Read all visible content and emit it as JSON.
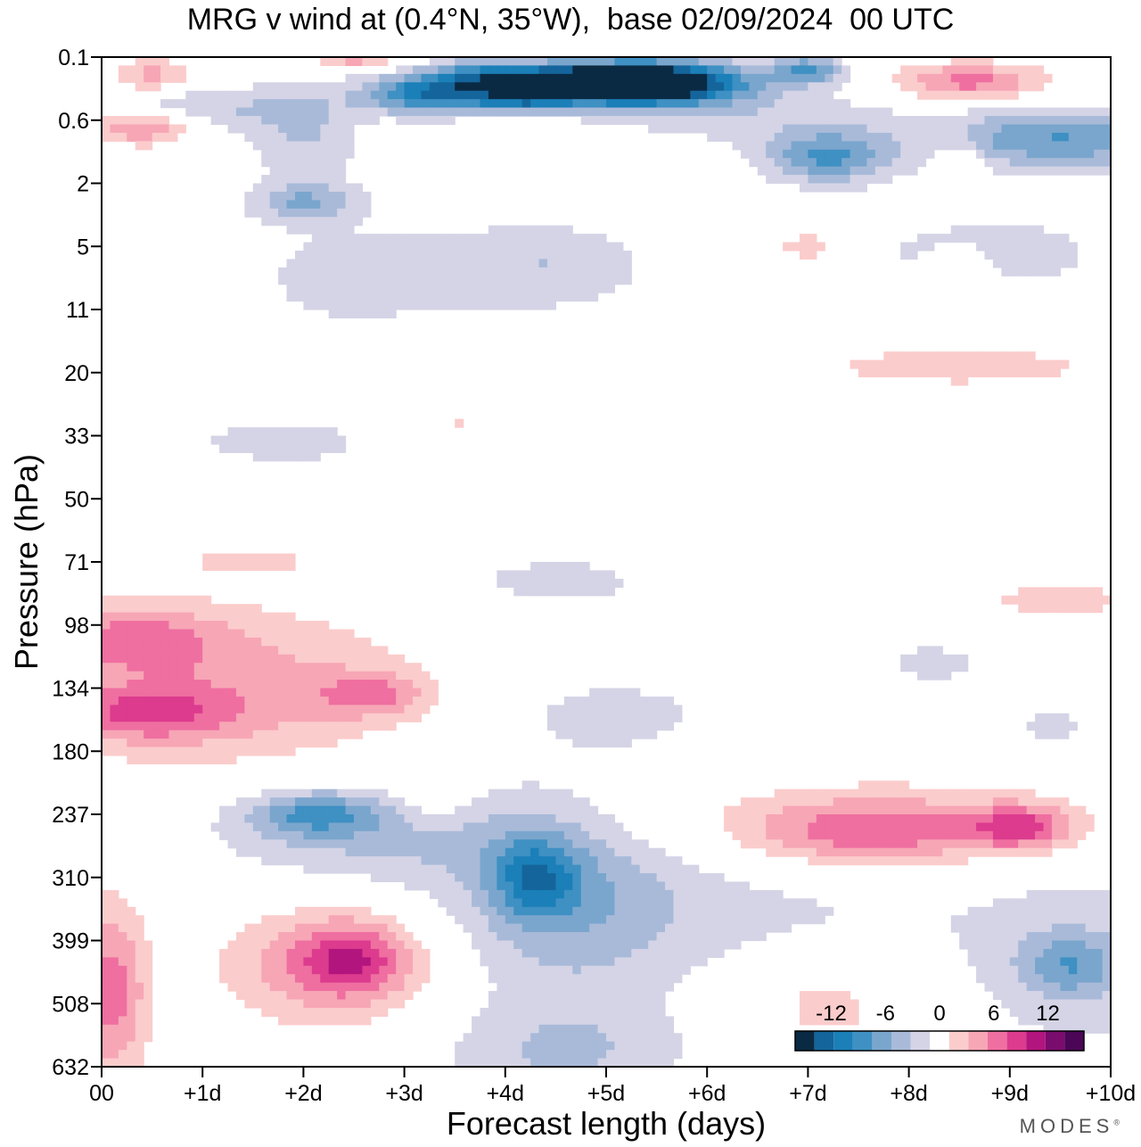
{
  "chart_data": {
    "type": "heatmap",
    "title": "MRG v wind at (0.4°N, 35°W),  base 02/09/2024  00 UTC",
    "xlabel": "Forecast length (days)",
    "ylabel": "Pressure (hPa)",
    "x_ticks": [
      "00",
      "+1d",
      "+2d",
      "+3d",
      "+4d",
      "+5d",
      "+6d",
      "+7d",
      "+8d",
      "+9d",
      "+10d"
    ],
    "xlim": [
      0,
      10
    ],
    "y_ticks": [
      "0.1",
      "0.6",
      "2",
      "5",
      "11",
      "20",
      "33",
      "50",
      "71",
      "98",
      "134",
      "180",
      "237",
      "310",
      "399",
      "508",
      "632"
    ],
    "y_axis_note": "pressure levels, top to bottom",
    "colorbar": {
      "tick_labels": [
        "-12",
        "-6",
        "0",
        "6",
        "12"
      ],
      "tick_values": [
        -12,
        -6,
        0,
        6,
        12
      ],
      "levels": [
        -14,
        -12,
        -10,
        -8,
        -6,
        -4,
        -2,
        2,
        4,
        6,
        8,
        10,
        12,
        14
      ],
      "colors": [
        "#0a2a44",
        "#14659b",
        "#1b7fb8",
        "#3f90c3",
        "#7aa6cd",
        "#a9bad9",
        "#d4d4e6",
        "#ffffff",
        "#fbcccc",
        "#f7a6b6",
        "#ef6fa0",
        "#dc3b8e",
        "#b3157e",
        "#7a0c6e",
        "#4c0658"
      ]
    },
    "features": [
      {
        "x": 3.2,
        "level_index": 0.6,
        "sx": 0.45,
        "sy": 0.22,
        "value": -10
      },
      {
        "x": 3.9,
        "level_index": 0.35,
        "sx": 0.5,
        "sy": 0.22,
        "value": -10
      },
      {
        "x": 5.5,
        "level_index": 0.4,
        "sx": 0.65,
        "sy": 0.25,
        "value": -15
      },
      {
        "x": 4.2,
        "level_index": 0.7,
        "sx": 0.35,
        "sy": 0.15,
        "value": -7
      },
      {
        "x": 7.0,
        "level_index": 0.2,
        "sx": 0.25,
        "sy": 0.15,
        "value": -8
      },
      {
        "x": 7.2,
        "level_index": 1.6,
        "sx": 0.45,
        "sy": 0.3,
        "value": -8
      },
      {
        "x": 9.5,
        "level_index": 1.3,
        "sx": 0.9,
        "sy": 0.35,
        "value": -8
      },
      {
        "x": 0.9,
        "level_index": 0.8,
        "sx": 0.7,
        "sy": 0.25,
        "value": -4
      },
      {
        "x": 2.0,
        "level_index": 1.2,
        "sx": 0.4,
        "sy": 0.6,
        "value": -4
      },
      {
        "x": 2.0,
        "level_index": 2.3,
        "sx": 0.35,
        "sy": 0.2,
        "value": -5
      },
      {
        "x": 4.5,
        "level_index": 3.3,
        "sx": 0.7,
        "sy": 0.5,
        "value": -3.5
      },
      {
        "x": 6.4,
        "level_index": 0.9,
        "sx": 1.2,
        "sy": 0.4,
        "value": -3
      },
      {
        "x": 8.8,
        "level_index": 3.1,
        "sx": 1.0,
        "sy": 0.5,
        "value": -3
      },
      {
        "x": 2.5,
        "level_index": 3.5,
        "sx": 1.1,
        "sy": 0.9,
        "value": -2.5
      },
      {
        "x": 1.8,
        "level_index": 6.1,
        "sx": 1.0,
        "sy": 0.4,
        "value": -2.5
      },
      {
        "x": 4.5,
        "level_index": 8.3,
        "sx": 1.1,
        "sy": 0.4,
        "value": -2.5
      },
      {
        "x": 8.2,
        "level_index": 9.6,
        "sx": 0.6,
        "sy": 0.35,
        "value": -2.5
      },
      {
        "x": 5.0,
        "level_index": 10.4,
        "sx": 1.1,
        "sy": 0.6,
        "value": -2.5
      },
      {
        "x": 9.4,
        "level_index": 10.6,
        "sx": 0.4,
        "sy": 0.25,
        "value": -2.5
      },
      {
        "x": 2.7,
        "level_index": 12.3,
        "sx": 1.2,
        "sy": 0.6,
        "value": -4.5
      },
      {
        "x": 2.1,
        "level_index": 12.0,
        "sx": 0.45,
        "sy": 0.25,
        "value": -6
      },
      {
        "x": 4.6,
        "level_index": 13.4,
        "sx": 0.8,
        "sy": 1.1,
        "value": -5
      },
      {
        "x": 4.3,
        "level_index": 13.0,
        "sx": 0.3,
        "sy": 0.45,
        "value": -7
      },
      {
        "x": 4.6,
        "level_index": 15.8,
        "sx": 0.9,
        "sy": 0.6,
        "value": -4
      },
      {
        "x": 6.5,
        "level_index": 13.3,
        "sx": 1.6,
        "sy": 0.9,
        "value": -2.5
      },
      {
        "x": 9.7,
        "level_index": 14.3,
        "sx": 0.9,
        "sy": 1.3,
        "value": -3
      },
      {
        "x": 9.6,
        "level_index": 14.4,
        "sx": 0.35,
        "sy": 0.35,
        "value": -5
      },
      {
        "x": 0.5,
        "level_index": 0.3,
        "sx": 0.3,
        "sy": 0.2,
        "value": 5
      },
      {
        "x": 0.4,
        "level_index": 1.1,
        "sx": 0.35,
        "sy": 0.2,
        "value": 7
      },
      {
        "x": 8.6,
        "level_index": 0.4,
        "sx": 0.55,
        "sy": 0.22,
        "value": 7
      },
      {
        "x": 8.5,
        "level_index": 1.7,
        "sx": 0.15,
        "sy": 0.3,
        "value": 4
      },
      {
        "x": 7.0,
        "level_index": 3.0,
        "sx": 0.25,
        "sy": 0.15,
        "value": 4
      },
      {
        "x": 8.5,
        "level_index": 3.4,
        "sx": 0.2,
        "sy": 0.25,
        "value": 4
      },
      {
        "x": 8.5,
        "level_index": 4.9,
        "sx": 1.6,
        "sy": 0.35,
        "value": 2.5
      },
      {
        "x": 3.5,
        "level_index": 5.8,
        "sx": 0.45,
        "sy": 0.2,
        "value": 2.5
      },
      {
        "x": 1.5,
        "level_index": 8.0,
        "sx": 0.6,
        "sy": 0.15,
        "value": 2.5
      },
      {
        "x": 5.5,
        "level_index": 8.1,
        "sx": 0.15,
        "sy": 0.3,
        "value": 2.5
      },
      {
        "x": 9.5,
        "level_index": 8.6,
        "sx": 0.9,
        "sy": 0.3,
        "value": 2.5
      },
      {
        "x": 7.0,
        "level_index": 9.8,
        "sx": 0.45,
        "sy": 0.3,
        "value": 2.5
      },
      {
        "x": 1.2,
        "level_index": 10.0,
        "sx": 1.4,
        "sy": 0.9,
        "value": 5
      },
      {
        "x": 0.3,
        "level_index": 9.2,
        "sx": 0.6,
        "sy": 0.35,
        "value": 5
      },
      {
        "x": 0.4,
        "level_index": 10.4,
        "sx": 0.6,
        "sy": 0.3,
        "value": 5.5
      },
      {
        "x": 2.7,
        "level_index": 10.1,
        "sx": 0.4,
        "sy": 0.25,
        "value": 5
      },
      {
        "x": 3.3,
        "level_index": 11.8,
        "sx": 0.3,
        "sy": 0.3,
        "value": 2.5
      },
      {
        "x": 7.7,
        "level_index": 12.2,
        "sx": 1.8,
        "sy": 0.55,
        "value": 4
      },
      {
        "x": 7.6,
        "level_index": 12.3,
        "sx": 0.8,
        "sy": 0.35,
        "value": 5
      },
      {
        "x": 9.1,
        "level_index": 12.2,
        "sx": 0.35,
        "sy": 0.25,
        "value": 7
      },
      {
        "x": 2.2,
        "level_index": 14.4,
        "sx": 0.75,
        "sy": 0.7,
        "value": 5
      },
      {
        "x": 2.5,
        "level_index": 14.3,
        "sx": 0.4,
        "sy": 0.4,
        "value": 6.5
      },
      {
        "x": 0.1,
        "level_index": 14.8,
        "sx": 0.25,
        "sy": 1.0,
        "value": 7
      },
      {
        "x": 7.2,
        "level_index": 15.0,
        "sx": 0.55,
        "sy": 0.5,
        "value": 3
      },
      {
        "x": 2.5,
        "level_index": 0.05,
        "sx": 0.3,
        "sy": 0.1,
        "value": 5
      },
      {
        "x": 4.9,
        "level_index": 0.4,
        "sx": 0.6,
        "sy": 0.2,
        "value": -10
      },
      {
        "x": 5.0,
        "level_index": 0.45,
        "sx": 0.35,
        "sy": 0.12,
        "value": -15
      }
    ]
  },
  "brand": {
    "name": "MODES",
    "mark": "®"
  }
}
